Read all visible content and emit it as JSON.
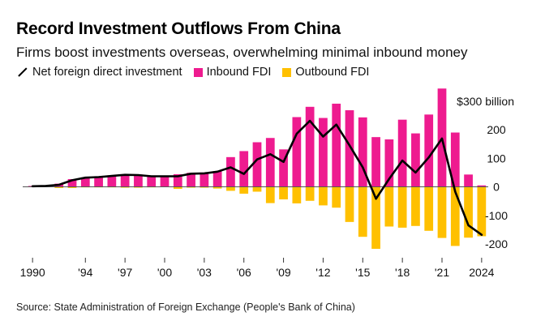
{
  "title": "Record Investment Outflows From China",
  "subtitle": "Firms boost investments overseas, overwhelming minimal inbound money",
  "legend": {
    "net": "Net foreign direct investment",
    "inbound": "Inbound FDI",
    "outbound": "Outbound FDI"
  },
  "source": "Source: State Administration of Foreign Exchange (People's Bank of China)",
  "colors": {
    "inbound": "#ee1b8f",
    "outbound": "#ffc000",
    "net": "#000000",
    "zero_line": "#555555",
    "grid": "#dddddd"
  },
  "chart_data": {
    "type": "bar",
    "unit_label": "$300 billion",
    "ylim": [
      -250,
      330
    ],
    "yticks": [
      {
        "value": 300,
        "label": "$300 billion"
      },
      {
        "value": 200,
        "label": "200"
      },
      {
        "value": 100,
        "label": "100"
      },
      {
        "value": 0,
        "label": "0"
      },
      {
        "value": -100,
        "label": "-100"
      },
      {
        "value": -200,
        "label": "-200"
      }
    ],
    "xlim": [
      1989.5,
      2024.5
    ],
    "xticks": [
      {
        "value": 1990,
        "label": "1990"
      },
      {
        "value": 1994,
        "label": "'94"
      },
      {
        "value": 1997,
        "label": "'97"
      },
      {
        "value": 2000,
        "label": "'00"
      },
      {
        "value": 2003,
        "label": "'03"
      },
      {
        "value": 2006,
        "label": "'06"
      },
      {
        "value": 2009,
        "label": "'09"
      },
      {
        "value": 2012,
        "label": "'12"
      },
      {
        "value": 2015,
        "label": "'15"
      },
      {
        "value": 2018,
        "label": "'18"
      },
      {
        "value": 2021,
        "label": "'21"
      },
      {
        "value": 2024,
        "label": "2024"
      }
    ],
    "years": [
      1990,
      1991,
      1992,
      1993,
      1994,
      1995,
      1996,
      1997,
      1998,
      1999,
      2000,
      2001,
      2002,
      2003,
      2004,
      2005,
      2006,
      2007,
      2008,
      2009,
      2010,
      2011,
      2012,
      2013,
      2014,
      2015,
      2016,
      2017,
      2018,
      2019,
      2020,
      2021,
      2022,
      2023,
      2024
    ],
    "series": [
      {
        "name": "Inbound FDI",
        "values": [
          3,
          4,
          11,
          27,
          33,
          37,
          40,
          44,
          43,
          38,
          38,
          44,
          49,
          50,
          55,
          104,
          125,
          156,
          171,
          131,
          244,
          280,
          241,
          291,
          268,
          243,
          174,
          166,
          235,
          187,
          253,
          344,
          190,
          43,
          5
        ]
      },
      {
        "name": "Outbound FDI",
        "values": [
          -1,
          -1,
          -4,
          -4,
          -2,
          -2,
          -2,
          -3,
          -3,
          -2,
          -1,
          -7,
          -3,
          -3,
          -6,
          -14,
          -24,
          -17,
          -57,
          -44,
          -58,
          -49,
          -65,
          -73,
          -123,
          -175,
          -217,
          -139,
          -143,
          -137,
          -154,
          -179,
          -207,
          -178,
          -173
        ]
      },
      {
        "name": "Net foreign direct investment",
        "values": [
          2,
          3,
          7,
          23,
          32,
          34,
          38,
          42,
          41,
          37,
          37,
          37,
          46,
          47,
          53,
          68,
          45,
          96,
          114,
          87,
          186,
          231,
          176,
          218,
          145,
          68,
          -42,
          28,
          92,
          50,
          103,
          169,
          -17,
          -135,
          -168
        ]
      }
    ]
  }
}
